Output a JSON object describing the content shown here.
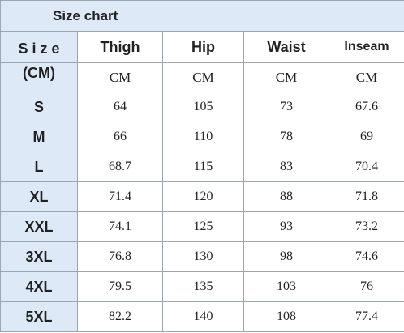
{
  "title": "Size chart",
  "table": {
    "size_header": [
      "S i z e",
      "(CM)"
    ],
    "columns": [
      "Thigh",
      "Hip",
      "Waist",
      "Inseam"
    ],
    "units": [
      "CM",
      "CM",
      "CM",
      "CM"
    ],
    "rows": [
      [
        "S",
        64,
        105,
        73,
        67.6
      ],
      [
        "M",
        66,
        110,
        78,
        69
      ],
      [
        "L",
        68.7,
        115,
        83,
        70.4
      ],
      [
        "XL",
        71.4,
        120,
        88,
        71.8
      ],
      [
        "XXL",
        74.1,
        125,
        93,
        73.2
      ],
      [
        "3XL",
        76.8,
        130,
        98,
        74.6
      ],
      [
        "4XL",
        79.5,
        135,
        103,
        76
      ],
      [
        "5XL",
        82.2,
        140,
        108,
        77.4
      ]
    ]
  }
}
